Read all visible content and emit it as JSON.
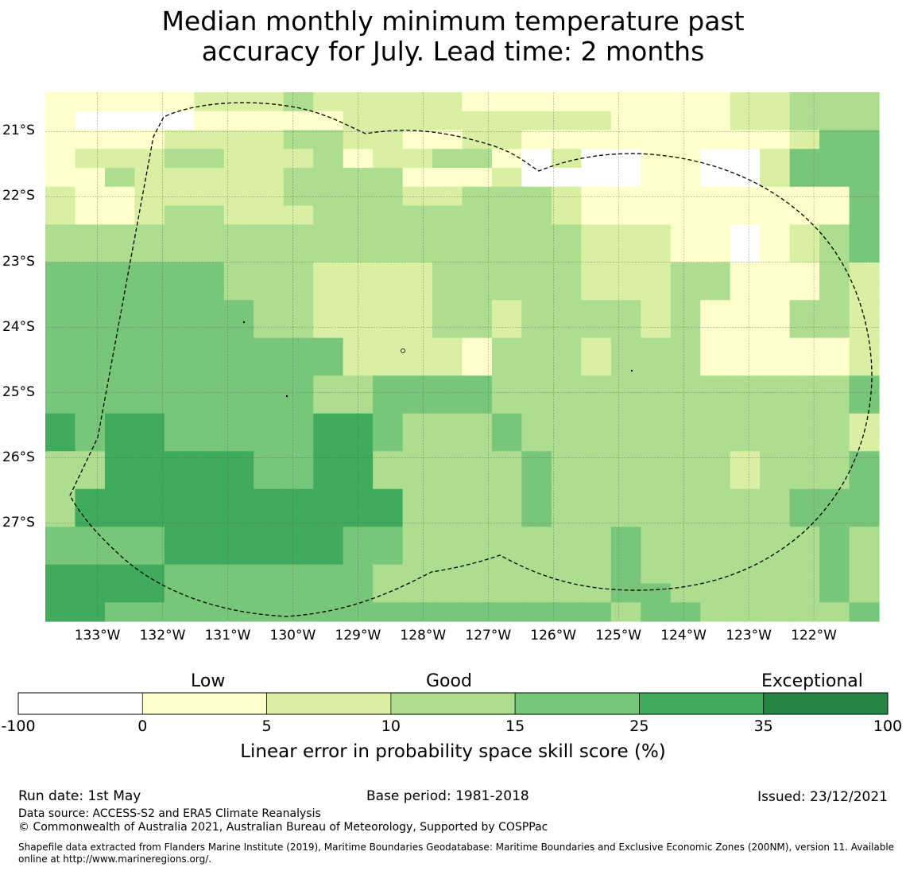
{
  "title": {
    "line1": "Median monthly minimum temperature past",
    "line2": "accuracy for July. Lead time: 2 months"
  },
  "colors": {
    "lt0": "#ffffff",
    "c0_5": "#ffffcc",
    "c5_10": "#d9f0a3",
    "c10_15": "#addd8e",
    "c15_25": "#78c679",
    "c25_35": "#41ab5d",
    "c35_100": "#238443"
  },
  "map": {
    "lon_labels": [
      "133°W",
      "132°W",
      "131°W",
      "130°W",
      "129°W",
      "128°W",
      "127°W",
      "126°W",
      "125°W",
      "124°W",
      "123°W",
      "122°W"
    ],
    "lat_labels": [
      "21°S",
      "22°S",
      "23°S",
      "24°S",
      "25°S",
      "26°S",
      "27°S"
    ],
    "lon_range": [
      -133.8,
      -121.0
    ],
    "lat_range": [
      -28.5,
      -20.4
    ],
    "grid_icon": "graticule",
    "eez_boundary_icon": "dashed-eez-outline",
    "grid": {
      "note_codes": "row-major from top (north) to bottom (south); a=<0 b=0-5 c=5-10 d=10-15 e=15-25 f=25-35",
      "rows": [
        "bbbbbcccdcccccbbbbbbbbbccddd",
        "baaaabbbbbcccccccccbbbbccddd",
        "bbbbccccddccbbccbbbbbbbbbcee",
        "bcccddcccdbccddbacaabbaacee",
        "bbdcccccddddbbbcaaaabbaacee",
        "cbbcccccddddccdddcbbbbbbbbbe",
        "cbbcddcccddddddddcbbbbbbbbbe",
        "ddddddddddddddddddcccbbabcde",
        "ddddddddddddddddddcccbbabcde",
        "eeeeeedddccccdddddcccddbbbdc",
        "eeeeeedddccccdddddcccddbbbdc",
        "eeeeeeeddccccddcddddcdbbbddc",
        "eeeeeeeddccccddcddddcdbbbddc",
        "eeeeeeeeeeccccbdddcdddbbbbbc",
        "eeeeeeeeeeccccbdddcdddbbbbbc",
        "eeeeeeeeeddeeeedddddddddddde",
        "eeeeeeeeeddeeeedddddddddddde",
        "feffeeeeeffedddedddddddddddc",
        "feffeeeeeffedddedddddddddddc",
        "ddfffffeeffdddddeddddddcddde",
        "ddfffffeeffdddddeddddddcddde",
        "dfffffffffffddddeddddddddeee",
        "dfffffffffffddddeddddddddeee",
        "eeeeffffffeedddddddedddddded",
        "eeeeffffffeedddddddedddddded",
        "ffffeeeeeeeddddddddedddddded",
        "ffffeeeeeeeddddddddeeddddded",
        "ffeeeeeeeeeeeeeeeeedeeddddde"
      ]
    }
  },
  "colorbar": {
    "category_labels": [
      "Low",
      "Good",
      "Exceptional"
    ],
    "ticks": [
      "-100",
      "0",
      "5",
      "10",
      "15",
      "25",
      "35",
      "100"
    ],
    "title": "Linear error in probability space skill score (%)"
  },
  "footer": {
    "run_date": "Run date: 1st May",
    "base_period": "Base period: 1981-2018",
    "issued": "Issued: 23/12/2021",
    "data_source": "Data source: ACCESS-S2 and ERA5 Climate Reanalysis",
    "copyright": "© Commonwealth of Australia 2021, Australian Bureau of Meteorology, Supported by COSPPac",
    "shapefile_line1": "Shapefile data extracted from Flanders Marine Institute (2019), Maritime Boundaries Geodatabase: Maritime Boundaries and Exclusive Economic Zones (200NM), version 11. Available",
    "shapefile_line2": "online at http://www.marineregions.org/."
  }
}
